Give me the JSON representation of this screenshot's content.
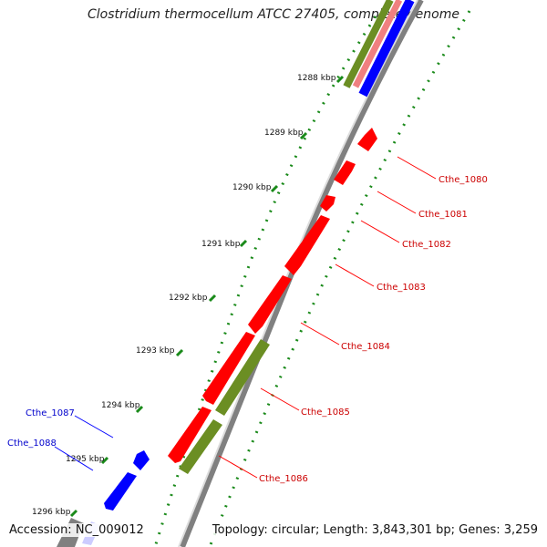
{
  "title": "Clostridium thermocellum ATCC 27405, complete genome",
  "footer": {
    "accession": "Accession: NC_009012",
    "topology": "Topology: circular; Length: 3,843,301 bp; Genes: 3,259"
  },
  "colors": {
    "red_gene": "#ff0000",
    "blue_gene": "#0000ff",
    "olive_feature": "#6b8e23",
    "pink_feature": "#f08080",
    "backbone": "#808080",
    "tick_dots": "#1a8a1a",
    "label_red": "#cc0000",
    "label_blue": "#0000cc"
  },
  "kbp_ticks": [
    "1288 kbp",
    "1289 kbp",
    "1290 kbp",
    "1291 kbp",
    "1292 kbp",
    "1293 kbp",
    "1294 kbp",
    "1295 kbp",
    "1296 kbp"
  ],
  "genes_right": [
    "Cthe_1080",
    "Cthe_1081",
    "Cthe_1082",
    "Cthe_1083",
    "Cthe_1084",
    "Cthe_1085",
    "Cthe_1086"
  ],
  "genes_left": [
    "Cthe_1087",
    "Cthe_1088"
  ]
}
